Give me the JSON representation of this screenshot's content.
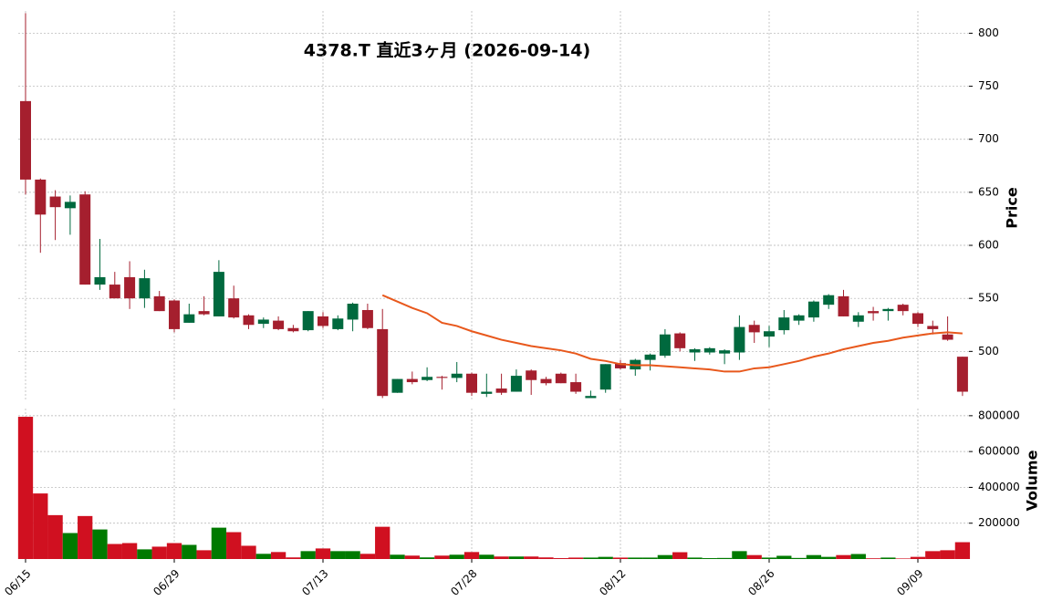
{
  "chart_data": [
    {
      "type": "candlestick",
      "title": "4378.T  直近3ヶ月  (2026-09-14)",
      "ylabel": "Price",
      "categories": [
        "06/15",
        null,
        null,
        null,
        null,
        null,
        null,
        null,
        null,
        null,
        "06/29",
        null,
        null,
        null,
        null,
        null,
        null,
        null,
        null,
        null,
        "07/13",
        null,
        null,
        null,
        null,
        null,
        null,
        null,
        null,
        null,
        "07/28",
        null,
        null,
        null,
        null,
        null,
        null,
        null,
        null,
        null,
        "08/12",
        null,
        null,
        null,
        null,
        null,
        null,
        null,
        null,
        null,
        "08/26",
        null,
        null,
        null,
        null,
        null,
        null,
        null,
        null,
        null,
        "09/09",
        null,
        null,
        null
      ],
      "open": [
        736,
        662,
        646,
        635,
        648,
        563,
        563,
        570,
        550,
        552,
        548,
        527,
        538,
        533,
        550,
        534,
        526,
        529,
        522,
        520,
        533,
        521,
        530,
        539,
        521,
        461,
        474,
        473,
        476,
        475,
        479,
        460,
        465,
        462,
        482,
        474,
        479,
        471,
        456,
        464,
        489,
        483,
        492,
        496,
        517,
        499,
        499,
        498,
        499,
        525,
        514,
        520,
        529,
        532,
        544,
        552,
        528,
        538,
        538,
        544,
        536,
        524,
        516,
        495
      ],
      "high": [
        819,
        663,
        652,
        647,
        651,
        606,
        575,
        585,
        577,
        557,
        549,
        545,
        552,
        586,
        562,
        535,
        532,
        533,
        525,
        538,
        537,
        534,
        546,
        545,
        540,
        474,
        481,
        485,
        477,
        490,
        480,
        479,
        479,
        483,
        483,
        476,
        480,
        479,
        463,
        488,
        492,
        493,
        498,
        521,
        518,
        503,
        504,
        502,
        534,
        529,
        524,
        539,
        535,
        548,
        554,
        558,
        537,
        542,
        541,
        545,
        537,
        529,
        533,
        495
      ],
      "low": [
        648,
        593,
        605,
        610,
        563,
        558,
        550,
        540,
        541,
        538,
        518,
        527,
        534,
        533,
        531,
        521,
        522,
        520,
        518,
        519,
        522,
        520,
        519,
        521,
        456,
        461,
        469,
        472,
        464,
        471,
        458,
        457,
        459,
        462,
        459,
        468,
        470,
        460,
        456,
        461,
        483,
        477,
        482,
        494,
        500,
        491,
        497,
        488,
        492,
        508,
        504,
        516,
        525,
        528,
        540,
        533,
        523,
        529,
        529,
        534,
        523,
        516,
        510,
        458
      ],
      "close": [
        662,
        629,
        636,
        641,
        563,
        570,
        550,
        550,
        569,
        538,
        521,
        535,
        535,
        575,
        532,
        525,
        530,
        521,
        519,
        538,
        524,
        531,
        545,
        522,
        458,
        474,
        471,
        476,
        475,
        479,
        461,
        462,
        461,
        477,
        473,
        470,
        470,
        462,
        458,
        488,
        484,
        492,
        497,
        516,
        503,
        502,
        503,
        501,
        523,
        518,
        519,
        532,
        534,
        547,
        553,
        533,
        534,
        536,
        540,
        538,
        526,
        521,
        511,
        462
      ],
      "up_color": "#00693e",
      "down_color": "#a51f2e",
      "series": [
        {
          "color": "#e8581c",
          "values": [
            null,
            null,
            null,
            null,
            null,
            null,
            null,
            null,
            null,
            null,
            null,
            null,
            null,
            null,
            null,
            null,
            null,
            null,
            null,
            null,
            null,
            null,
            null,
            null,
            553,
            547,
            541,
            536,
            527,
            524,
            519,
            515,
            511,
            508,
            505,
            503,
            501,
            498,
            493,
            491,
            488,
            487,
            487,
            486,
            485,
            484,
            483,
            481,
            481,
            484,
            485,
            488,
            491,
            495,
            498,
            502,
            505,
            508,
            510,
            513,
            515,
            517,
            518,
            517
          ]
        }
      ],
      "ylim": [
        453,
        821
      ],
      "yticks": [
        500,
        550,
        600,
        650,
        700,
        750,
        800
      ],
      "grid": true
    },
    {
      "type": "bar",
      "ylabel": "Volume",
      "values": [
        794000,
        366000,
        245000,
        145000,
        240000,
        165000,
        84000,
        89000,
        54000,
        69000,
        89000,
        79000,
        49000,
        175000,
        150000,
        74000,
        29000,
        39000,
        9000,
        44000,
        59000,
        44000,
        44000,
        29000,
        180000,
        24000,
        19000,
        9000,
        19000,
        24000,
        39000,
        24000,
        14000,
        14000,
        14000,
        9000,
        5000,
        8000,
        8000,
        12000,
        8000,
        8000,
        8000,
        22000,
        38000,
        8000,
        5000,
        6000,
        44000,
        22000,
        8000,
        18000,
        6000,
        22000,
        12000,
        22000,
        28000,
        4000,
        8000,
        3000,
        12000,
        44000,
        49000,
        94000
      ],
      "up_color": "#007a00",
      "down_color": "#d01020",
      "ylim": [
        0,
        840000
      ],
      "yticks": [
        200000,
        400000,
        600000,
        800000
      ],
      "grid": true
    }
  ]
}
